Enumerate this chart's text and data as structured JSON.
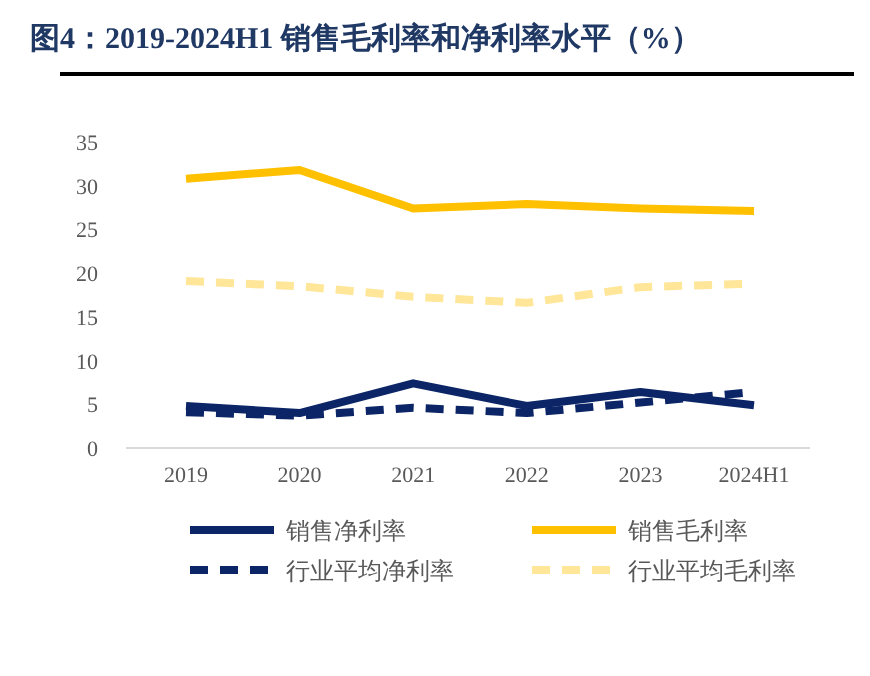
{
  "chart_data": {
    "type": "line",
    "title": "图4：2019-2024H1  销售毛利率和净利率水平（%）",
    "categories": [
      "2019",
      "2020",
      "2021",
      "2022",
      "2023",
      "2024H1"
    ],
    "series": [
      {
        "name": "销售净利率",
        "color": "#0b2566",
        "values": [
          4.8,
          4.0,
          7.4,
          4.8,
          6.4,
          4.9
        ],
        "line_style": "solid"
      },
      {
        "name": "销售毛利率",
        "color": "#ffc000",
        "values": [
          30.8,
          31.8,
          27.4,
          27.9,
          27.4,
          27.1
        ],
        "line_style": "solid"
      },
      {
        "name": "行业平均净利率",
        "color": "#0b2566",
        "values": [
          4.1,
          3.7,
          4.6,
          4.0,
          5.2,
          6.4
        ],
        "line_style": "dashed"
      },
      {
        "name": "行业平均毛利率",
        "color": "#ffe699",
        "values": [
          19.1,
          18.5,
          17.3,
          16.6,
          18.4,
          18.8
        ],
        "line_style": "dashed"
      }
    ],
    "ylim": [
      0,
      35
    ],
    "yticks": [
      0,
      5,
      10,
      15,
      20,
      25,
      30,
      35
    ],
    "grid": false,
    "legend": "bottom"
  }
}
